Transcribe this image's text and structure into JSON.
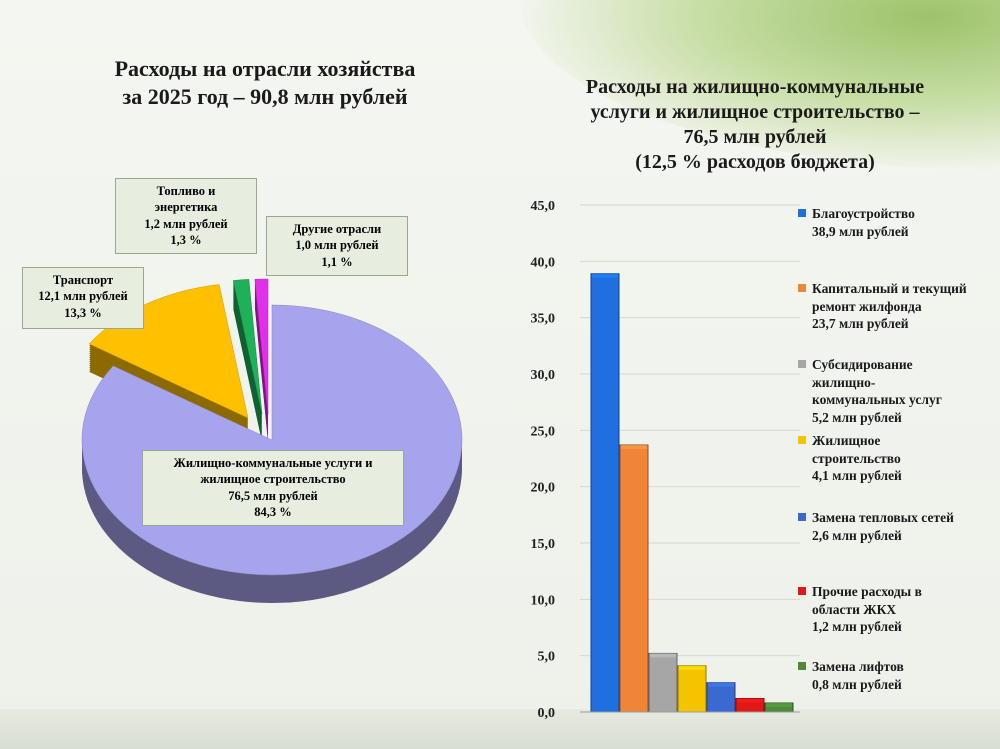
{
  "chart_data": [
    {
      "type": "pie",
      "title": "Расходы на отрасли хозяйства за 2025 год – 90,8 млн рублей",
      "title_lines": [
        "Расходы на отрасли хозяйства",
        "за 2025 год – 90,8 млн рублей"
      ],
      "slices": [
        {
          "name": "Жилищно-коммунальные услуги и жилищное строительство",
          "value": 76.5,
          "percent": 84.3,
          "color": "#a7a4ee",
          "label_lines": [
            "Жилищно-коммунальные услуги и",
            "жилищное строительство",
            "76,5 млн рублей",
            "84,3 %"
          ]
        },
        {
          "name": "Транспорт",
          "value": 12.1,
          "percent": 13.3,
          "color": "#ffc000",
          "label_lines": [
            "Транспорт",
            "12,1 млн рублей",
            "13,3 %"
          ]
        },
        {
          "name": "Топливо и энергетика",
          "value": 1.2,
          "percent": 1.3,
          "color": "#1fb05a",
          "label_lines": [
            "Топливо и",
            "энергетика",
            "1,2 млн рублей",
            "1,3 %"
          ]
        },
        {
          "name": "Другие отрасли",
          "value": 1.0,
          "percent": 1.1,
          "color": "#e030e8",
          "label_lines": [
            "Другие отрасли",
            "1,0 млн рублей",
            "1,1 %"
          ]
        }
      ]
    },
    {
      "type": "bar",
      "title_lines": [
        "Расходы на жилищно-коммунальные",
        "услуги и жилищное строительство –",
        "76,5 млн рублей",
        "(12,5 % расходов бюджета)"
      ],
      "ylim": [
        0,
        45
      ],
      "yticks": [
        "0,0",
        "5,0",
        "10,0",
        "15,0",
        "20,0",
        "25,0",
        "30,0",
        "35,0",
        "40,0",
        "45,0"
      ],
      "series": [
        {
          "name": "Благоустройство",
          "value": 38.9,
          "color": "#1f6fe0",
          "legend_lines": [
            "Благоустройство",
            "38,9 млн рублей"
          ]
        },
        {
          "name": "Капитальный и текущий ремонт жилфонда",
          "value": 23.7,
          "color": "#f0853a",
          "legend_lines": [
            "Капитальный и текущий",
            "ремонт жилфонда",
            "23,7 млн рублей"
          ]
        },
        {
          "name": "Субсидирование жилищно-коммунальных услуг",
          "value": 5.2,
          "color": "#a6a6a6",
          "legend_lines": [
            "Субсидирование",
            "жилищно-",
            "коммунальных услуг",
            "5,2 млн рублей"
          ]
        },
        {
          "name": "Жилищное строительство",
          "value": 4.1,
          "color": "#f5c400",
          "legend_lines": [
            "Жилищное",
            "строительство",
            "4,1 млн рублей"
          ]
        },
        {
          "name": "Замена тепловых сетей",
          "value": 2.6,
          "color": "#3a6ad0",
          "legend_lines": [
            "Замена тепловых сетей",
            "2,6 млн рублей"
          ]
        },
        {
          "name": "Прочие расходы в области ЖКХ",
          "value": 1.2,
          "color": "#e01818",
          "legend_lines": [
            "Прочие расходы в",
            "области ЖКХ",
            "1,2 млн рублей"
          ]
        },
        {
          "name": "Замена лифтов",
          "value": 0.8,
          "color": "#4e8a3a",
          "legend_lines": [
            "Замена лифтов",
            "0,8 млн рублей"
          ]
        }
      ]
    }
  ]
}
